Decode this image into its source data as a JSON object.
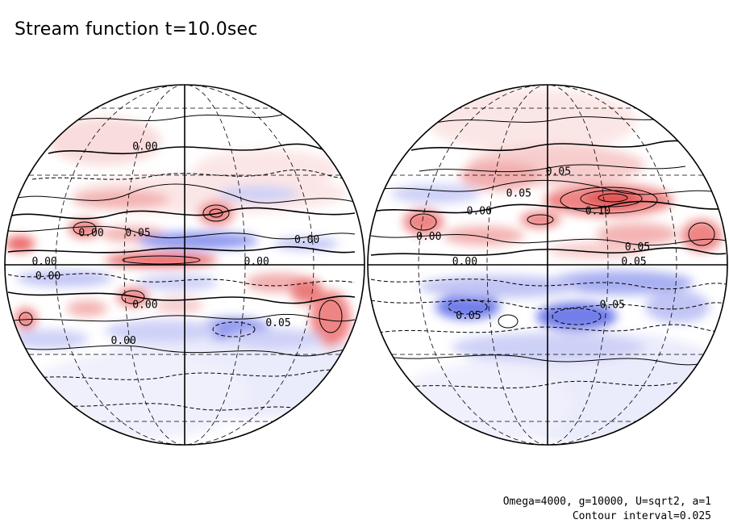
{
  "title": "Stream function t=10.0sec",
  "footer": {
    "params": "Omega=4000, g=10000, U=sqrt2, a=1",
    "contour_interval": "Contour interval=0.025"
  },
  "colors": {
    "positive": "#e8393b",
    "negative": "#3a4fe0",
    "contour": "#000000",
    "grid": "#000000"
  },
  "left_hemisphere": {
    "contour_labels": [
      {
        "text": "0.00",
        "u": 0.39,
        "v": 0.18
      },
      {
        "text": "0.00",
        "u": 0.24,
        "v": 0.42
      },
      {
        "text": "0.05",
        "u": 0.37,
        "v": 0.42
      },
      {
        "text": "0.00",
        "u": 0.84,
        "v": 0.44
      },
      {
        "text": "0.00",
        "u": 0.11,
        "v": 0.5
      },
      {
        "text": "0.00",
        "u": 0.7,
        "v": 0.5
      },
      {
        "text": "0.00",
        "u": 0.12,
        "v": 0.54
      },
      {
        "text": "0.00",
        "u": 0.39,
        "v": 0.62
      },
      {
        "text": "0.05",
        "u": 0.76,
        "v": 0.67
      },
      {
        "text": "0.00",
        "u": 0.33,
        "v": 0.72
      }
    ]
  },
  "right_hemisphere": {
    "contour_labels": [
      {
        "text": "0.05",
        "u": 0.53,
        "v": 0.25
      },
      {
        "text": "0.05",
        "u": 0.42,
        "v": 0.31
      },
      {
        "text": "0.00",
        "u": 0.31,
        "v": 0.36
      },
      {
        "text": "0.10",
        "u": 0.64,
        "v": 0.36
      },
      {
        "text": "0.00",
        "u": 0.17,
        "v": 0.43
      },
      {
        "text": "0.05",
        "u": 0.75,
        "v": 0.46
      },
      {
        "text": "0.05",
        "u": 0.74,
        "v": 0.5
      },
      {
        "text": "0.00",
        "u": 0.27,
        "v": 0.5
      },
      {
        "text": "0.05",
        "u": 0.68,
        "v": 0.62
      },
      {
        "text": "0.05",
        "u": 0.28,
        "v": 0.65
      }
    ]
  }
}
